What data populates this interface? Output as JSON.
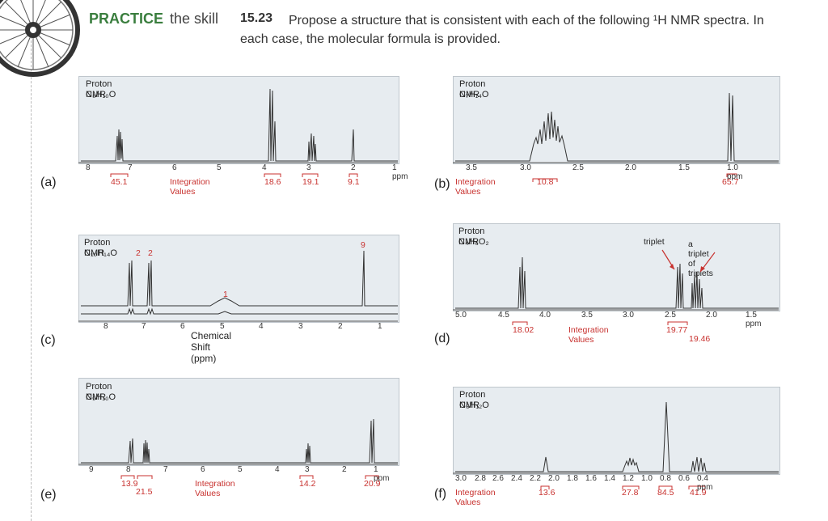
{
  "header": {
    "practice": "PRACTICE",
    "skill": "the skill",
    "number": "15.23",
    "description_line1": "Propose a structure that is consistent with each of the following ¹H NMR spectra. In",
    "description_line2": "each case, the molecular formula is provided."
  },
  "panels": {
    "a": {
      "letter": "(a)",
      "title": "Proton NMR",
      "formula": "C₈H₁₀O",
      "ticks": [
        "8",
        "7",
        "6",
        "5",
        "4",
        "3",
        "2",
        "1 ppm"
      ],
      "integration_label": "Integration Values",
      "integrations": [
        "45.1",
        "18.6",
        "19.1",
        "9.1"
      ]
    },
    "b": {
      "letter": "(b)",
      "title": "Proton NMR",
      "formula": "C₇H₁₄O",
      "ticks": [
        "3.5",
        "3.0",
        "2.5",
        "2.0",
        "1.5",
        "1.0 ppm"
      ],
      "integration_label": "Integration Values",
      "integrations": [
        "10.8",
        "65.7"
      ]
    },
    "c": {
      "letter": "(c)",
      "title": "Proton NMR",
      "formula": "C₁₀H₁₄O",
      "ticks": [
        "8",
        "7",
        "6",
        "5",
        "4",
        "3",
        "2",
        "1"
      ],
      "axis_label": "Chemical Shift (ppm)",
      "peak_labels": [
        "2",
        "2",
        "1",
        "9"
      ]
    },
    "d": {
      "letter": "(d)",
      "title": "Proton NMR",
      "formula": "C₄H₆O₂",
      "ticks": [
        "5.0",
        "4.5",
        "4.0",
        "3.5",
        "3.0",
        "2.5",
        "2.0",
        "1.5 ppm"
      ],
      "integration_label": "Integration Values",
      "integrations": [
        "18.02",
        "19.77",
        "19.46"
      ],
      "annotations": [
        "triplet",
        "a triplet of triplets"
      ]
    },
    "e": {
      "letter": "(e)",
      "title": "Proton NMR",
      "formula": "C₉H₁₀O",
      "ticks": [
        "9",
        "8",
        "7",
        "6",
        "5",
        "4",
        "3",
        "2",
        "1 ppm"
      ],
      "integration_label": "Integration Values",
      "integrations": [
        "13.9",
        "21.5",
        "14.2",
        "20.9"
      ]
    },
    "f": {
      "letter": "(f)",
      "title": "Proton NMR",
      "formula": "C₅H₁₂O",
      "ticks": [
        "3.0",
        "2.8",
        "2.6",
        "2.4",
        "2.2",
        "2.0",
        "1.8",
        "1.6",
        "1.4",
        "1.2",
        "1.0",
        "0.8",
        "0.6",
        "0.4 ppm"
      ],
      "integration_label": "Integration Values",
      "integrations": [
        "13.6",
        "27.8",
        "84.5",
        "41.9"
      ]
    }
  },
  "colors": {
    "practice": "#3a7e3e",
    "integration": "#c8322f",
    "panel_bg": "#e7ecf0"
  }
}
